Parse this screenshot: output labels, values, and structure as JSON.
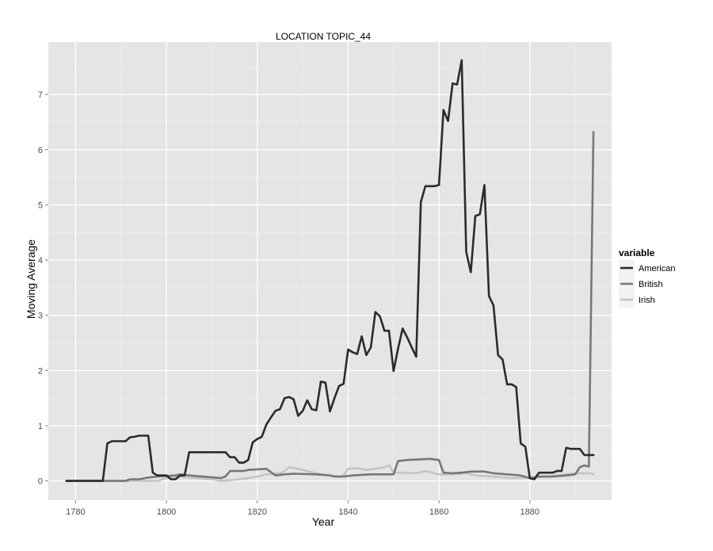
{
  "chart_data": {
    "type": "line",
    "title": "LOCATION TOPIC_44",
    "xlabel": "Year",
    "ylabel": "Moving Average",
    "xlim": [
      1774,
      1898
    ],
    "ylim": [
      -0.35,
      7.95
    ],
    "xticks": [
      1780,
      1800,
      1820,
      1840,
      1860,
      1880
    ],
    "yticks": [
      0,
      1,
      2,
      3,
      4,
      5,
      6,
      7
    ],
    "grid": true,
    "legend": {
      "title": "variable",
      "position": "right"
    },
    "series": [
      {
        "name": "American",
        "color": "#2b2b2b",
        "points": [
          [
            1778,
            0.0
          ],
          [
            1786,
            0.0
          ],
          [
            1787,
            0.68
          ],
          [
            1788,
            0.72
          ],
          [
            1789,
            0.72
          ],
          [
            1790,
            0.72
          ],
          [
            1791,
            0.72
          ],
          [
            1792,
            0.79
          ],
          [
            1793,
            0.8
          ],
          [
            1794,
            0.82
          ],
          [
            1795,
            0.82
          ],
          [
            1796,
            0.82
          ],
          [
            1797,
            0.15
          ],
          [
            1798,
            0.1
          ],
          [
            1799,
            0.1
          ],
          [
            1800,
            0.1
          ],
          [
            1801,
            0.03
          ],
          [
            1802,
            0.03
          ],
          [
            1803,
            0.1
          ],
          [
            1804,
            0.1
          ],
          [
            1805,
            0.52
          ],
          [
            1806,
            0.52
          ],
          [
            1813,
            0.52
          ],
          [
            1814,
            0.43
          ],
          [
            1815,
            0.43
          ],
          [
            1816,
            0.33
          ],
          [
            1817,
            0.33
          ],
          [
            1818,
            0.38
          ],
          [
            1819,
            0.7
          ],
          [
            1820,
            0.76
          ],
          [
            1821,
            0.8
          ],
          [
            1822,
            1.02
          ],
          [
            1823,
            1.15
          ],
          [
            1824,
            1.27
          ],
          [
            1825,
            1.3
          ],
          [
            1826,
            1.5
          ],
          [
            1827,
            1.52
          ],
          [
            1828,
            1.48
          ],
          [
            1829,
            1.18
          ],
          [
            1830,
            1.27
          ],
          [
            1831,
            1.46
          ],
          [
            1832,
            1.3
          ],
          [
            1833,
            1.28
          ],
          [
            1834,
            1.8
          ],
          [
            1835,
            1.78
          ],
          [
            1836,
            1.26
          ],
          [
            1837,
            1.5
          ],
          [
            1838,
            1.72
          ],
          [
            1839,
            1.76
          ],
          [
            1840,
            2.38
          ],
          [
            1841,
            2.33
          ],
          [
            1842,
            2.3
          ],
          [
            1843,
            2.62
          ],
          [
            1844,
            2.28
          ],
          [
            1845,
            2.42
          ],
          [
            1846,
            3.06
          ],
          [
            1847,
            2.98
          ],
          [
            1848,
            2.72
          ],
          [
            1849,
            2.72
          ],
          [
            1850,
            1.99
          ],
          [
            1851,
            2.4
          ],
          [
            1852,
            2.76
          ],
          [
            1853,
            2.6
          ],
          [
            1854,
            2.42
          ],
          [
            1855,
            2.25
          ],
          [
            1856,
            5.05
          ],
          [
            1857,
            5.34
          ],
          [
            1858,
            5.34
          ],
          [
            1859,
            5.34
          ],
          [
            1860,
            5.36
          ],
          [
            1861,
            6.72
          ],
          [
            1862,
            6.52
          ],
          [
            1863,
            7.2
          ],
          [
            1864,
            7.18
          ],
          [
            1865,
            7.62
          ],
          [
            1866,
            4.15
          ],
          [
            1867,
            3.78
          ],
          [
            1868,
            4.8
          ],
          [
            1869,
            4.83
          ],
          [
            1870,
            5.36
          ],
          [
            1871,
            3.35
          ],
          [
            1872,
            3.18
          ],
          [
            1873,
            2.28
          ],
          [
            1874,
            2.2
          ],
          [
            1875,
            1.75
          ],
          [
            1876,
            1.75
          ],
          [
            1877,
            1.7
          ],
          [
            1878,
            0.68
          ],
          [
            1879,
            0.62
          ],
          [
            1880,
            0.05
          ],
          [
            1881,
            0.03
          ],
          [
            1882,
            0.15
          ],
          [
            1885,
            0.15
          ],
          [
            1886,
            0.18
          ],
          [
            1887,
            0.18
          ],
          [
            1888,
            0.6
          ],
          [
            1889,
            0.58
          ],
          [
            1891,
            0.58
          ],
          [
            1892,
            0.47
          ],
          [
            1894,
            0.47
          ]
        ]
      },
      {
        "name": "British",
        "color": "#777777",
        "points": [
          [
            1778,
            0.0
          ],
          [
            1791,
            0.0
          ],
          [
            1792,
            0.03
          ],
          [
            1794,
            0.03
          ],
          [
            1796,
            0.06
          ],
          [
            1798,
            0.08
          ],
          [
            1802,
            0.1
          ],
          [
            1803,
            0.12
          ],
          [
            1805,
            0.1
          ],
          [
            1808,
            0.08
          ],
          [
            1812,
            0.05
          ],
          [
            1813,
            0.08
          ],
          [
            1814,
            0.18
          ],
          [
            1817,
            0.18
          ],
          [
            1818,
            0.2
          ],
          [
            1822,
            0.22
          ],
          [
            1823,
            0.16
          ],
          [
            1824,
            0.1
          ],
          [
            1826,
            0.12
          ],
          [
            1828,
            0.13
          ],
          [
            1833,
            0.12
          ],
          [
            1836,
            0.1
          ],
          [
            1837,
            0.08
          ],
          [
            1839,
            0.08
          ],
          [
            1841,
            0.1
          ],
          [
            1845,
            0.12
          ],
          [
            1850,
            0.12
          ],
          [
            1851,
            0.36
          ],
          [
            1853,
            0.38
          ],
          [
            1858,
            0.4
          ],
          [
            1860,
            0.38
          ],
          [
            1861,
            0.15
          ],
          [
            1863,
            0.14
          ],
          [
            1865,
            0.15
          ],
          [
            1867,
            0.17
          ],
          [
            1870,
            0.17
          ],
          [
            1872,
            0.14
          ],
          [
            1875,
            0.12
          ],
          [
            1878,
            0.1
          ],
          [
            1880,
            0.05
          ],
          [
            1882,
            0.08
          ],
          [
            1885,
            0.08
          ],
          [
            1888,
            0.1
          ],
          [
            1890,
            0.12
          ],
          [
            1891,
            0.25
          ],
          [
            1892,
            0.28
          ],
          [
            1893,
            0.26
          ],
          [
            1894,
            6.32
          ]
        ]
      },
      {
        "name": "Irish",
        "color": "#c4c4c4",
        "points": [
          [
            1778,
            0.0
          ],
          [
            1798,
            0.0
          ],
          [
            1800,
            0.05
          ],
          [
            1802,
            0.08
          ],
          [
            1805,
            0.06
          ],
          [
            1810,
            0.03
          ],
          [
            1812,
            0.0
          ],
          [
            1815,
            0.02
          ],
          [
            1818,
            0.05
          ],
          [
            1820,
            0.08
          ],
          [
            1822,
            0.12
          ],
          [
            1825,
            0.14
          ],
          [
            1826,
            0.18
          ],
          [
            1827,
            0.25
          ],
          [
            1829,
            0.22
          ],
          [
            1831,
            0.18
          ],
          [
            1834,
            0.12
          ],
          [
            1836,
            0.1
          ],
          [
            1838,
            0.08
          ],
          [
            1839,
            0.1
          ],
          [
            1840,
            0.22
          ],
          [
            1842,
            0.23
          ],
          [
            1844,
            0.2
          ],
          [
            1846,
            0.22
          ],
          [
            1848,
            0.25
          ],
          [
            1849,
            0.28
          ],
          [
            1850,
            0.15
          ],
          [
            1855,
            0.14
          ],
          [
            1857,
            0.18
          ],
          [
            1858,
            0.16
          ],
          [
            1860,
            0.12
          ],
          [
            1863,
            0.12
          ],
          [
            1866,
            0.14
          ],
          [
            1868,
            0.1
          ],
          [
            1872,
            0.08
          ],
          [
            1876,
            0.05
          ],
          [
            1880,
            0.06
          ],
          [
            1884,
            0.08
          ],
          [
            1888,
            0.12
          ],
          [
            1891,
            0.14
          ],
          [
            1893,
            0.14
          ],
          [
            1894,
            0.12
          ]
        ]
      }
    ]
  }
}
